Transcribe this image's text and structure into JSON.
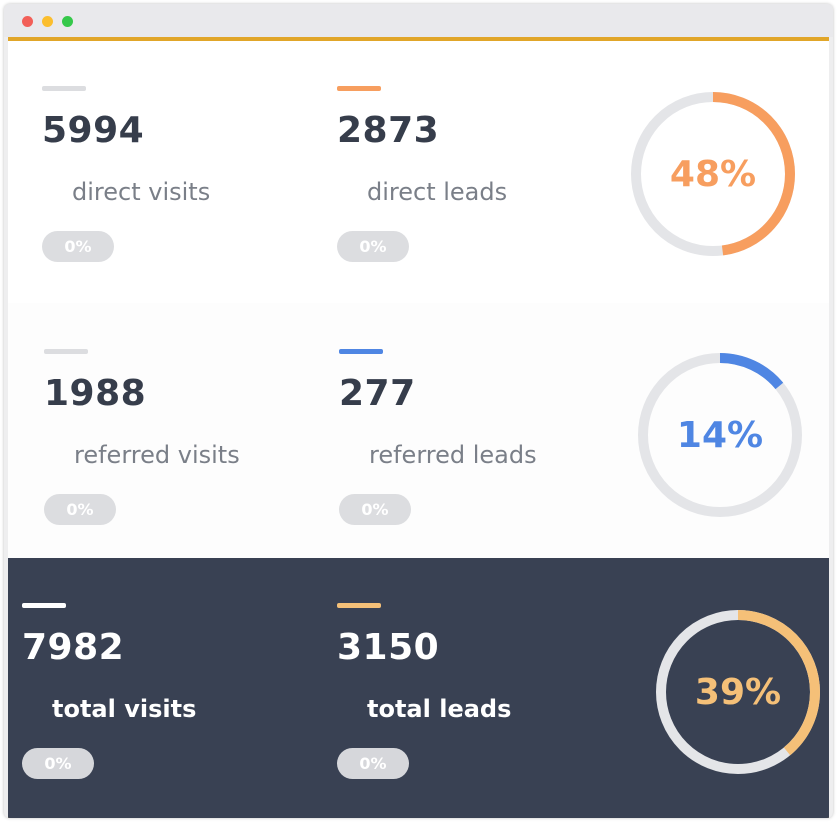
{
  "colors": {
    "direct": "#f79e5f",
    "referred": "#4f86e3",
    "total": "#f5c078",
    "visits_bar_light": "#dcdde0",
    "visits_bar_dark": "#ffffff",
    "ring_track": "#e4e5e8"
  },
  "rows": [
    {
      "visits": {
        "value": "5994",
        "label": "direct visits",
        "change": "0%"
      },
      "leads": {
        "value": "2873",
        "label": "direct leads",
        "change": "0%"
      },
      "ratio": {
        "text": "48%",
        "fraction": 0.48
      }
    },
    {
      "visits": {
        "value": "1988",
        "label": "referred visits",
        "change": "0%"
      },
      "leads": {
        "value": "277",
        "label": "referred leads",
        "change": "0%"
      },
      "ratio": {
        "text": "14%",
        "fraction": 0.14
      }
    },
    {
      "visits": {
        "value": "7982",
        "label": "total visits",
        "change": "0%"
      },
      "leads": {
        "value": "3150",
        "label": "total leads",
        "change": "0%"
      },
      "ratio": {
        "text": "39%",
        "fraction": 0.39
      }
    }
  ]
}
